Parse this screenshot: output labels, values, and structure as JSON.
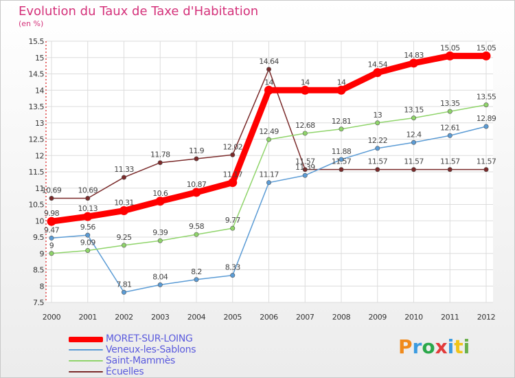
{
  "title": "Evolution du Taux de Taxe d'Habitation",
  "subtitle": "(en %)",
  "logo": {
    "text": "Proxiti",
    "letter_colors": [
      "#f08a1c",
      "#3b9be0",
      "#2aa84a",
      "#e23b3b",
      "#3b9be0",
      "#f0c419",
      "#6ab04c"
    ]
  },
  "chart_data": {
    "type": "line",
    "x": [
      "2000",
      "2001",
      "2002",
      "2003",
      "2004",
      "2005",
      "2006",
      "2007",
      "2008",
      "2009",
      "2010",
      "2011",
      "2012"
    ],
    "ylim": [
      7.5,
      15.5
    ],
    "y_ticks": [
      "7.5",
      "8",
      "8.5",
      "9",
      "9.5",
      "10",
      "10.5",
      "11",
      "11.5",
      "12",
      "12.5",
      "13",
      "13.5",
      "14",
      "14.5",
      "15",
      "15.5"
    ],
    "grid": true,
    "legend_position": "bottom-left",
    "series": [
      {
        "name": "Écuelles",
        "color": "#7a2a2a",
        "values": [
          10.69,
          10.69,
          11.33,
          11.78,
          11.9,
          12.02,
          14.64,
          11.57,
          11.57,
          11.57,
          11.57,
          11.57,
          11.57
        ],
        "labels": [
          "10.69",
          "10.69",
          "11.33",
          "11.78",
          "11.9",
          "12.02",
          "14.64",
          "11.57",
          "11.57",
          "11.57",
          "11.57",
          "11.57",
          "11.57"
        ]
      },
      {
        "name": "Veneux-les-Sablons",
        "color": "#5a9bd5",
        "values": [
          9.47,
          9.56,
          7.81,
          8.04,
          8.2,
          8.33,
          11.17,
          11.39,
          11.88,
          12.22,
          12.4,
          12.61,
          12.89
        ],
        "labels": [
          "9.47",
          "9.56",
          "7.81",
          "8.04",
          "8.2",
          "8.33",
          "11.17",
          "11.39",
          "11.88",
          "12.22",
          "12.4",
          "12.61",
          "12.89"
        ]
      },
      {
        "name": "Saint-Mammès",
        "color": "#8fd46a",
        "values": [
          9,
          9.09,
          9.25,
          9.39,
          9.58,
          9.77,
          12.49,
          12.68,
          12.81,
          13,
          13.15,
          13.35,
          13.55
        ],
        "labels": [
          "9",
          "9.09",
          "9.25",
          "9.39",
          "9.58",
          "9.77",
          "12.49",
          "12.68",
          "12.81",
          "13",
          "13.15",
          "13.35",
          "13.55"
        ]
      },
      {
        "name": "MORET-SUR-LOING",
        "color": "#ff0000",
        "values": [
          9.98,
          10.13,
          10.31,
          10.6,
          10.87,
          11.17,
          14,
          14,
          14,
          14.54,
          14.83,
          15.05,
          15.05
        ],
        "labels": [
          "9.98",
          "10.13",
          "10.31",
          "10.6",
          "10.87",
          "11.17",
          "14",
          "14",
          "14",
          "14.54",
          "14.83",
          "15.05",
          "15.05"
        ]
      }
    ]
  },
  "legend": [
    {
      "label": "MORET-SUR-LOING",
      "color": "#ff0000"
    },
    {
      "label": "Veneux-les-Sablons",
      "color": "#5a9bd5"
    },
    {
      "label": "Saint-Mammès",
      "color": "#8fd46a"
    },
    {
      "label": "Écuelles",
      "color": "#7a2a2a"
    }
  ]
}
